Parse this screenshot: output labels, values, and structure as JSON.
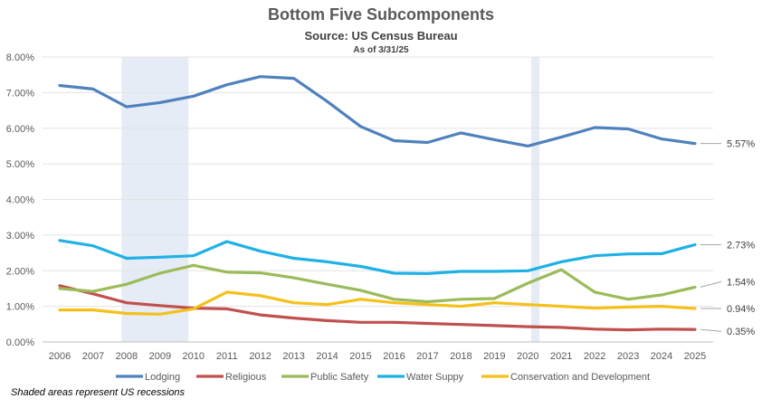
{
  "chart_data": {
    "type": "line",
    "title": "Bottom Five Subcomponents",
    "subtitle": "Source: US Census Bureau",
    "as_of": "As of 3/31/25",
    "footnote": "Shaded areas represent US recessions",
    "x": [
      "2006",
      "2007",
      "2008",
      "2009",
      "2010",
      "2011",
      "2012",
      "2013",
      "2014",
      "2015",
      "2016",
      "2017",
      "2018",
      "2019",
      "2020",
      "2021",
      "2022",
      "2023",
      "2024",
      "2025"
    ],
    "ylim": [
      0,
      8
    ],
    "yticks": [
      "0.00%",
      "1.00%",
      "2.00%",
      "3.00%",
      "4.00%",
      "5.00%",
      "6.00%",
      "7.00%",
      "8.00%"
    ],
    "grid": true,
    "legend_position": "bottom",
    "recessions": [
      {
        "start": 2007.85,
        "end": 2009.85
      },
      {
        "start": 2020.1,
        "end": 2020.35
      }
    ],
    "series": [
      {
        "name": "Lodging",
        "color": "#4F81BD",
        "values": [
          7.2,
          7.1,
          6.6,
          6.72,
          6.9,
          7.22,
          7.45,
          7.4,
          6.75,
          6.05,
          5.65,
          5.6,
          5.87,
          5.68,
          5.5,
          5.75,
          6.02,
          5.98,
          5.7,
          5.57
        ],
        "end_label": "5.57%"
      },
      {
        "name": "Religious",
        "color": "#C0504D",
        "values": [
          1.58,
          1.35,
          1.1,
          1.02,
          0.95,
          0.93,
          0.76,
          0.67,
          0.6,
          0.55,
          0.55,
          0.52,
          0.49,
          0.46,
          0.43,
          0.41,
          0.36,
          0.34,
          0.36,
          0.35
        ],
        "end_label": "0.35%"
      },
      {
        "name": "Public Safety",
        "color": "#9BBB59",
        "values": [
          1.5,
          1.42,
          1.62,
          1.93,
          2.15,
          1.96,
          1.94,
          1.8,
          1.62,
          1.45,
          1.2,
          1.13,
          1.2,
          1.22,
          1.65,
          2.03,
          1.4,
          1.2,
          1.32,
          1.54
        ],
        "end_label": "1.54%"
      },
      {
        "name": "Water Suppy",
        "color": "#1FB1E6",
        "values": [
          2.85,
          2.7,
          2.35,
          2.38,
          2.42,
          2.82,
          2.55,
          2.35,
          2.25,
          2.12,
          1.93,
          1.92,
          1.98,
          1.98,
          2.0,
          2.25,
          2.42,
          2.47,
          2.48,
          2.73
        ],
        "end_label": "2.73%"
      },
      {
        "name": "Conservation and Development",
        "color": "#F5C018",
        "values": [
          0.9,
          0.9,
          0.8,
          0.78,
          0.93,
          1.4,
          1.3,
          1.1,
          1.05,
          1.2,
          1.1,
          1.05,
          1.0,
          1.1,
          1.05,
          1.0,
          0.95,
          0.98,
          1.0,
          0.94
        ],
        "end_label": "0.94%"
      }
    ]
  }
}
